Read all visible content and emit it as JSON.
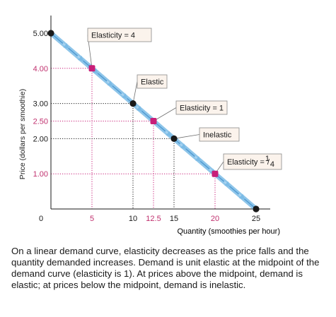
{
  "chart_data": {
    "type": "line",
    "xlabel": "Quantity (smoothies per hour)",
    "ylabel": "Price (dollars per smoothie)",
    "xlim": [
      0,
      25
    ],
    "ylim": [
      0,
      5
    ],
    "x_ticks": [
      {
        "value": 0,
        "label": "0",
        "color": "#1a1a1a"
      },
      {
        "value": 5,
        "label": "5",
        "color": "#c0306e"
      },
      {
        "value": 10,
        "label": "10",
        "color": "#1a1a1a"
      },
      {
        "value": 12.5,
        "label": "12.5",
        "color": "#c0306e"
      },
      {
        "value": 15,
        "label": "15",
        "color": "#1a1a1a"
      },
      {
        "value": 20,
        "label": "20",
        "color": "#c0306e"
      },
      {
        "value": 25,
        "label": "25",
        "color": "#1a1a1a"
      }
    ],
    "y_ticks": [
      {
        "value": 5,
        "label": "5.00",
        "color": "#1a1a1a"
      },
      {
        "value": 4,
        "label": "4.00",
        "color": "#c0306e"
      },
      {
        "value": 3,
        "label": "3.00",
        "color": "#1a1a1a"
      },
      {
        "value": 2.5,
        "label": "2.50",
        "color": "#c0306e"
      },
      {
        "value": 2,
        "label": "2.00",
        "color": "#1a1a1a"
      },
      {
        "value": 1,
        "label": "1.00",
        "color": "#c0306e"
      }
    ],
    "series": [
      {
        "x": [
          0,
          25
        ],
        "y": [
          5,
          0
        ],
        "color": "#7bbbe6"
      }
    ],
    "points": [
      {
        "x": 0,
        "y": 5,
        "color": "#1a1a1a"
      },
      {
        "x": 5,
        "y": 4,
        "color": "#c81e78"
      },
      {
        "x": 10,
        "y": 3,
        "color": "#1a1a1a"
      },
      {
        "x": 12.5,
        "y": 2.5,
        "color": "#c81e78"
      },
      {
        "x": 15,
        "y": 2,
        "color": "#1a1a1a"
      },
      {
        "x": 20,
        "y": 1,
        "color": "#c81e78"
      },
      {
        "x": 25,
        "y": 0,
        "color": "#1a1a1a"
      }
    ],
    "annotations": [
      {
        "text": "Elasticity = 4",
        "frac": "",
        "target": [
          5,
          4
        ]
      },
      {
        "text": "Elastic",
        "frac": "",
        "target": [
          10,
          3
        ]
      },
      {
        "text": "Elasticity = 1",
        "frac": "",
        "target": [
          12.5,
          2.5
        ]
      },
      {
        "text": "Inelastic",
        "frac": "",
        "target": [
          15,
          2
        ]
      },
      {
        "text": "Elasticity = ",
        "frac": "1/4",
        "target": [
          20,
          1
        ]
      }
    ]
  },
  "caption": "On a linear demand curve, elasticity decreases as the price falls and the quantity demanded increases. Demand is unit elastic at the midpoint of the demand curve (elasticity is 1). At prices above the midpoint, demand is elastic; at prices below the midpoint, demand is inelastic.",
  "colors": {
    "curve": "#7bbbe6",
    "curve_dark": "#4f9ad3",
    "magenta": "#c81e78",
    "callout_fill": "#fbf3ec",
    "callout_border": "#8a8a8a"
  }
}
